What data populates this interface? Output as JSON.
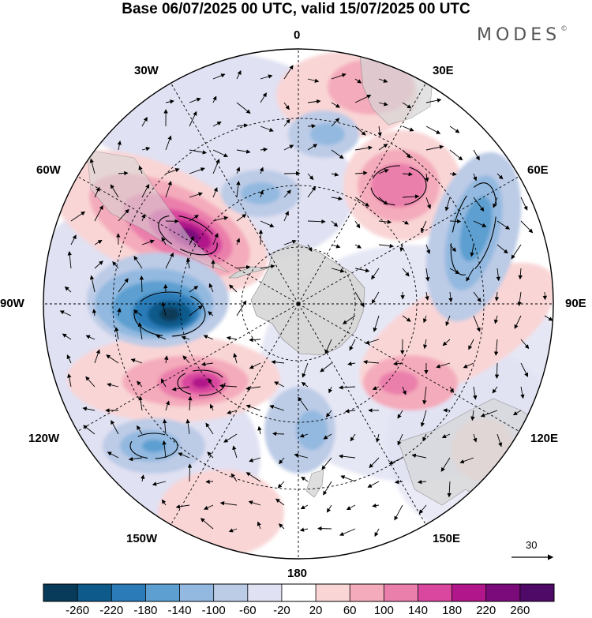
{
  "title": "Base 06/07/2025 00 UTC, valid 15/07/2025 00 UTC",
  "brand": {
    "name": "MODES",
    "mark": "©"
  },
  "map": {
    "projection": "south-polar-stereographic",
    "longitude_labels": {
      "lon_0": "0",
      "lon_30e": "30E",
      "lon_60e": "60E",
      "lon_90e": "90E",
      "lon_120e": "120E",
      "lon_150e": "150E",
      "lon_180": "180",
      "lon_150w": "150W",
      "lon_120w": "120W",
      "lon_90w": "90W",
      "lon_60w": "60W",
      "lon_30w": "30W"
    },
    "reference_vector": {
      "label": "30"
    },
    "colors": {
      "land": "#d6d6d6",
      "grid": "#000000",
      "neutral": "#ffffff"
    }
  },
  "colorbar": {
    "ticks": [
      "-260",
      "-220",
      "-180",
      "-140",
      "-100",
      "-60",
      "-20",
      "20",
      "60",
      "100",
      "140",
      "180",
      "220",
      "260"
    ],
    "colors": [
      "#083a59",
      "#0e5a8a",
      "#2b7bb8",
      "#5c9fd0",
      "#93b9e0",
      "#bccbe6",
      "#e0e1f2",
      "#ffffff",
      "#f9d5d6",
      "#f4abbb",
      "#eb7fac",
      "#d9479f",
      "#b1178a",
      "#7b0b7b",
      "#4e0a66"
    ]
  }
}
